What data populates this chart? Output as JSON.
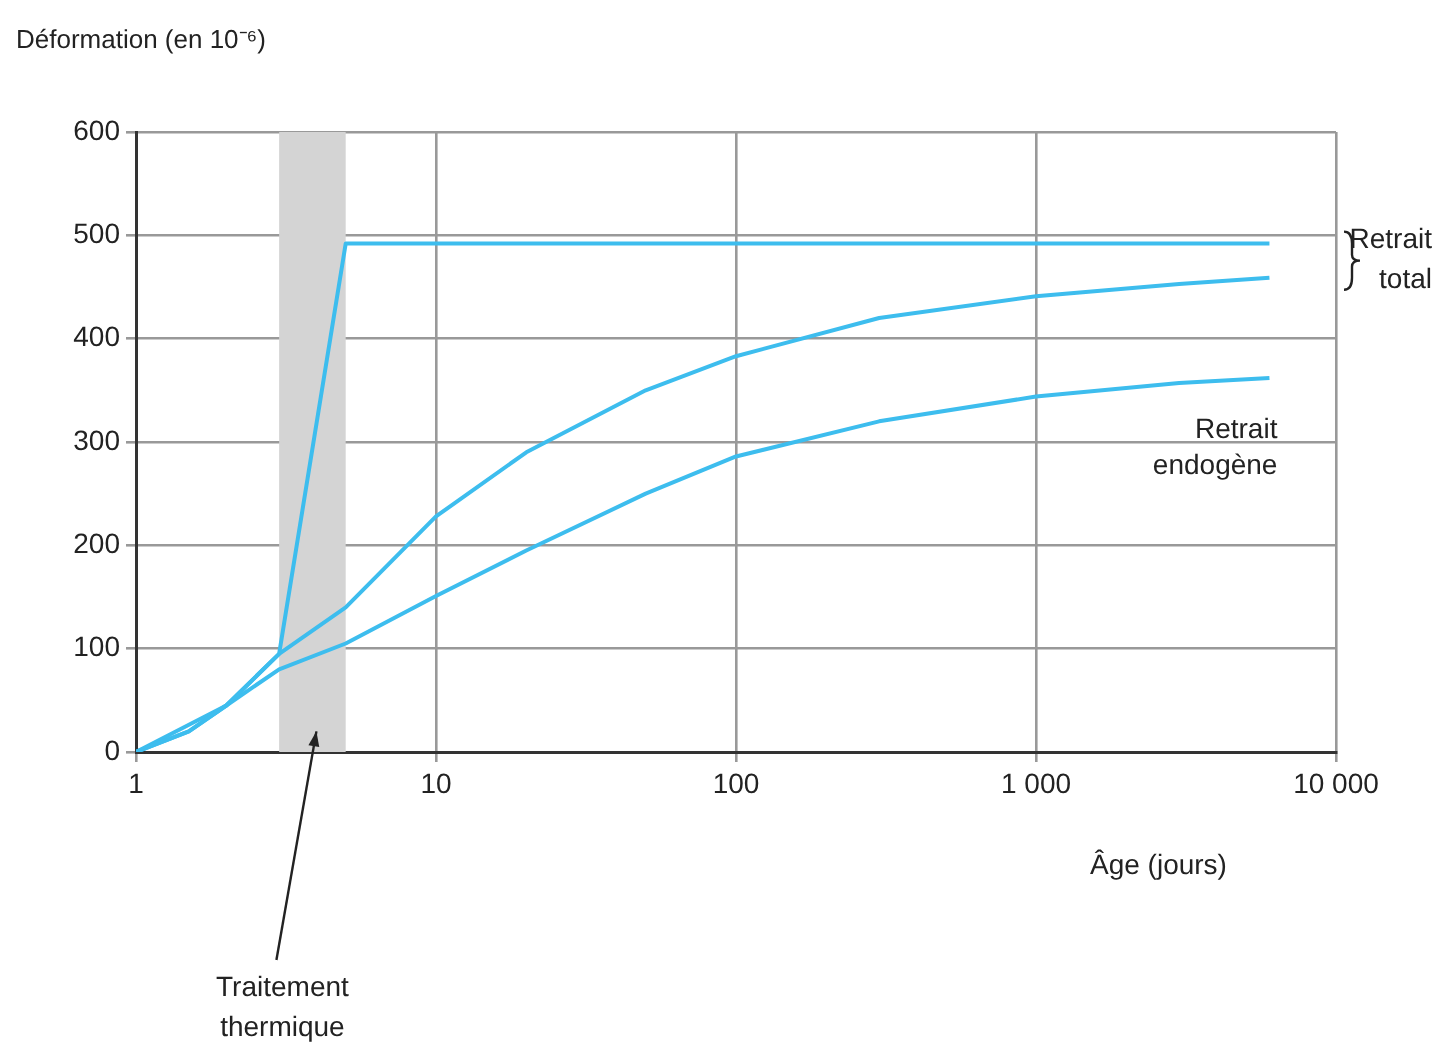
{
  "chart_data": {
    "type": "line",
    "ylabel": "Déformation (en 10⁻⁶)",
    "xlabel": "Âge (jours)",
    "log": "x",
    "xlim": [
      1,
      10000
    ],
    "xticks": [
      1,
      10,
      100,
      {
        "value": 1000,
        "label": "1 000"
      },
      {
        "value": 10000,
        "label": "10 000"
      }
    ],
    "ylim": [
      0,
      600
    ],
    "yticks": [
      0,
      100,
      200,
      300,
      400,
      500,
      600
    ],
    "grid": true,
    "legend": false,
    "marker": "none",
    "line_style": "solid",
    "series": [
      {
        "color": "#3dbdee",
        "x": [
          1,
          1.5,
          2,
          3,
          5,
          10,
          100,
          1000,
          6000
        ],
        "values": [
          0,
          20,
          45,
          95,
          492,
          492,
          492,
          492,
          492
        ]
      },
      {
        "color": "#3dbdee",
        "x": [
          1,
          1.5,
          2,
          3,
          5,
          10,
          20,
          50,
          100,
          300,
          1000,
          3000,
          6000
        ],
        "values": [
          0,
          20,
          45,
          95,
          140,
          228,
          290,
          350,
          383,
          420,
          441,
          453,
          459
        ]
      },
      {
        "name": "Retrait endogène",
        "color": "#3dbdee",
        "x": [
          1,
          2,
          3,
          5,
          10,
          20,
          50,
          100,
          300,
          1000,
          3000,
          6000
        ],
        "values": [
          0,
          45,
          80,
          105,
          151,
          195,
          250,
          286,
          320,
          344,
          357,
          362
        ]
      }
    ],
    "bands": [
      {
        "axis": "x",
        "from": 3,
        "to": 5,
        "label": "Traitement thermique",
        "color": "#d4d4d4"
      }
    ],
    "annotations": [
      "Retrait total"
    ]
  }
}
